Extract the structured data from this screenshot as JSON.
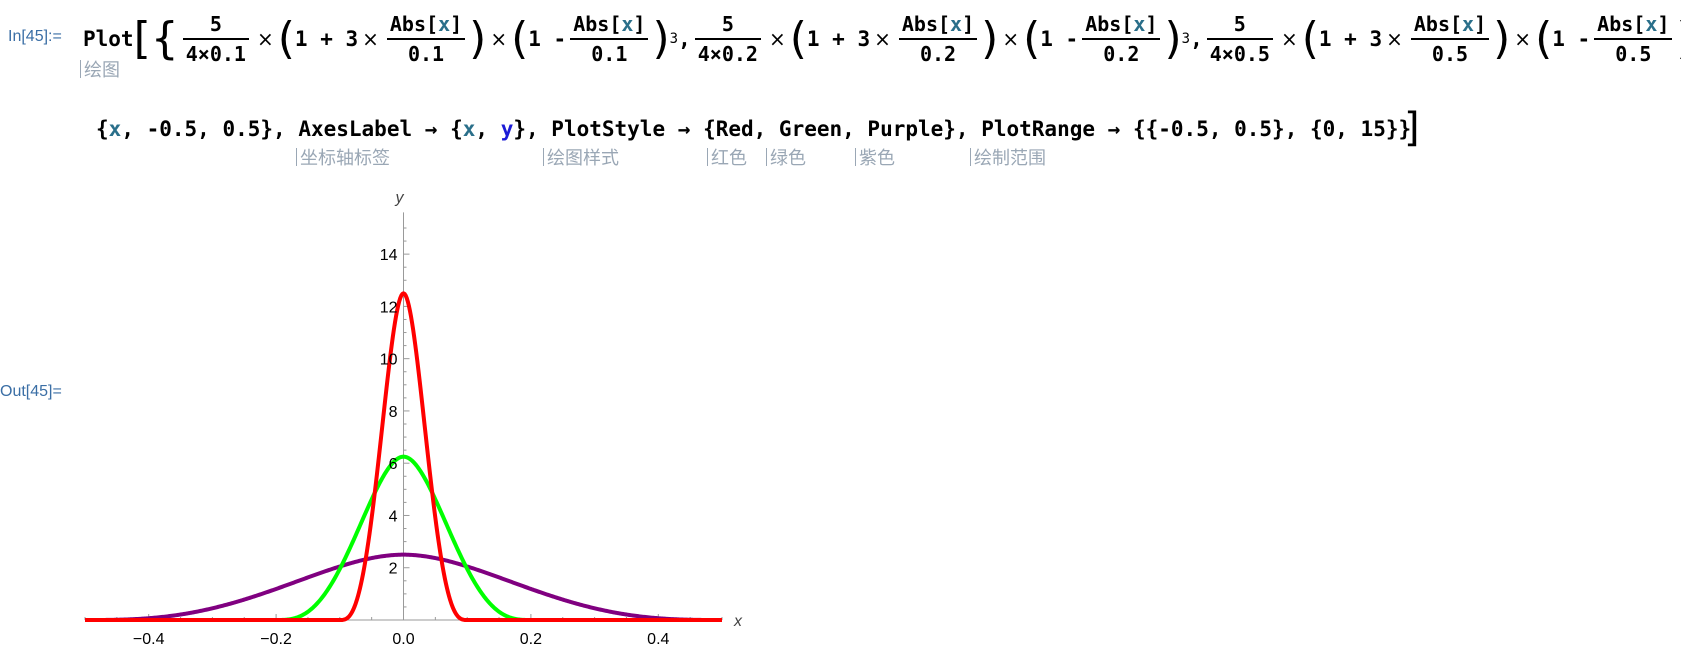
{
  "cell": {
    "in_label": "In[45]:=",
    "out_label": "Out[45]=",
    "plot_fn": "Plot",
    "abs_fn": "Abs",
    "var_x": "x",
    "var_y": "y",
    "five": "5",
    "four_times": "4×",
    "one_plus_three": "1 + 3",
    "one_minus": "1 -",
    "cube": "3",
    "times": "×",
    "params": [
      "0.1",
      "0.2",
      "0.5"
    ],
    "line2": {
      "open_range": "{",
      "range_x": "x",
      "range_vals": ", -0.5, 0.5}, ",
      "axes_label_opt": "AxesLabel",
      "arrow": "→",
      "axes_label_val_open": "{",
      "comma_sp": ", ",
      "axes_label_val_close": "}, ",
      "plotstyle_opt": "PlotStyle",
      "plotstyle_val": "{Red, Green, Purple}, ",
      "plotrange_opt": "PlotRange",
      "plotrange_val": "{{-0.5, 0.5}, {0, 15}}"
    },
    "hints": {
      "plot": "绘图",
      "axes_label": "坐标轴标签",
      "plot_style": "绘图样式",
      "red": "红色",
      "green": "绿色",
      "purple": "紫色",
      "plot_range": "绘制范围"
    }
  },
  "chart_data": {
    "type": "line",
    "xlabel": "x",
    "ylabel": "y",
    "xlim": [
      -0.5,
      0.5
    ],
    "ylim": [
      0,
      15
    ],
    "x_ticks": [
      "-0.4",
      "-0.2",
      "0.0",
      "0.2",
      "0.4"
    ],
    "y_ticks": [
      "2",
      "4",
      "6",
      "8",
      "10",
      "12",
      "14"
    ],
    "series": [
      {
        "name": "Red",
        "color": "#ff0000",
        "h": 0.1
      },
      {
        "name": "Green",
        "color": "#00ff00",
        "h": 0.2
      },
      {
        "name": "Purple",
        "color": "#800080",
        "h": 0.5
      }
    ]
  }
}
